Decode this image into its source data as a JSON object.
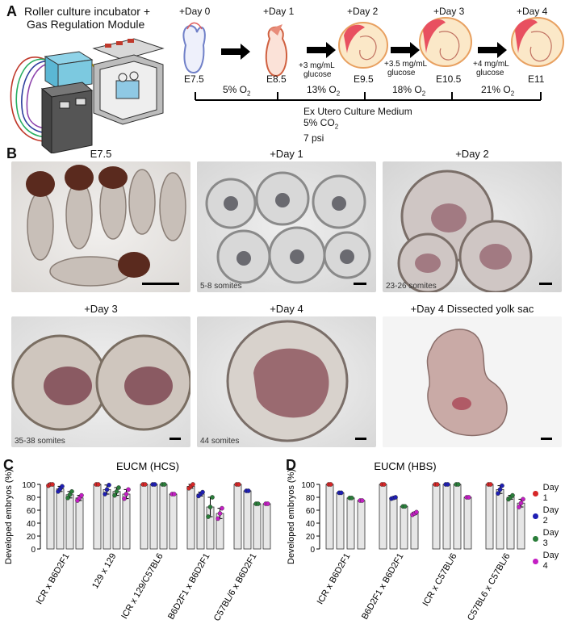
{
  "panelA": {
    "letter": "A",
    "incubator_label_1": "Roller culture incubator +",
    "incubator_label_2": "Gas Regulation Module",
    "days": [
      "+Day 0",
      "+Day 1",
      "+Day 2",
      "+Day 3",
      "+Day 4"
    ],
    "stages": [
      "E7.5",
      "E8.5",
      "E9.5",
      "E10.5",
      "E11"
    ],
    "glucose": [
      {
        "amount": "+3 mg/mL",
        "word": "glucose"
      },
      {
        "amount": "+3.5 mg/mL",
        "word": "glucose"
      },
      {
        "amount": "+4 mg/mL",
        "word": "glucose"
      }
    ],
    "oxygen": [
      {
        "value": "5% O",
        "sub": "2"
      },
      {
        "value": "13% O",
        "sub": "2"
      },
      {
        "value": "18% O",
        "sub": "2"
      },
      {
        "value": "21% O",
        "sub": "2"
      }
    ],
    "medium_line1": "Ex Utero Culture Medium",
    "medium_co2": "5% CO",
    "medium_co2_sub": "2",
    "medium_psi": "7 psi"
  },
  "panelB": {
    "letter": "B",
    "photos": [
      {
        "title": "E7.5",
        "somites": ""
      },
      {
        "title": "+Day 1",
        "somites": "5-8 somites"
      },
      {
        "title": "+Day 2",
        "somites": "23-26 somites"
      },
      {
        "title": "+Day 3",
        "somites": "35-38 somites"
      },
      {
        "title": "+Day 4",
        "somites": "44 somites"
      },
      {
        "title": "+Day 4  Dissected yolk sac",
        "somites": ""
      }
    ]
  },
  "panelC": {
    "letter": "C"
  },
  "panelD": {
    "letter": "D"
  },
  "legend": [
    {
      "label": "Day 1",
      "color": "#d62728"
    },
    {
      "label": "Day 2",
      "color": "#1f1fb4"
    },
    {
      "label": "Day 3",
      "color": "#2a7d3a"
    },
    {
      "label": "Day 4",
      "color": "#c41fc4"
    }
  ],
  "chart_data": [
    {
      "type": "bar",
      "title": "EUCM (HCS)",
      "ylabel": "Developed embryos (%)",
      "ylim": [
        0,
        100
      ],
      "yticks": [
        0,
        20,
        40,
        60,
        80,
        100
      ],
      "categories": [
        "ICR x B6D2F1",
        "129 x 129",
        "ICR x 129/C57BL6",
        "B6D2F1 x B6D2F1",
        "C57BL/6 x B6D2F1"
      ],
      "series": [
        {
          "name": "Day 1",
          "values": [
            100,
            100,
            100,
            97,
            100
          ]
        },
        {
          "name": "Day 2",
          "values": [
            93,
            92,
            100,
            85,
            90
          ]
        },
        {
          "name": "Day 3",
          "values": [
            84,
            89,
            100,
            65,
            70
          ]
        },
        {
          "name": "Day 4",
          "values": [
            79,
            85,
            85,
            55,
            70
          ]
        }
      ],
      "error": [
        [
          2,
          0,
          0,
          3,
          0
        ],
        [
          4,
          7,
          0,
          3,
          0
        ],
        [
          5,
          6,
          0,
          15,
          0
        ],
        [
          4,
          7,
          0,
          8,
          0
        ]
      ]
    },
    {
      "type": "bar",
      "title": "EUCM (HBS)",
      "ylabel": "Developed embryos (%)",
      "ylim": [
        0,
        100
      ],
      "yticks": [
        0,
        20,
        40,
        60,
        80,
        100
      ],
      "categories": [
        "ICR x B6D2F1",
        "B6D2F1 x B6D2F1",
        "ICR x C57BL/6",
        "C57BL6 x C57BL/6"
      ],
      "series": [
        {
          "name": "Day 1",
          "values": [
            100,
            100,
            100,
            100
          ]
        },
        {
          "name": "Day 2",
          "values": [
            87,
            79,
            100,
            92
          ]
        },
        {
          "name": "Day 3",
          "values": [
            79,
            66,
            100,
            80
          ]
        },
        {
          "name": "Day 4",
          "values": [
            75,
            55,
            80,
            71
          ]
        }
      ],
      "error": [
        [
          0,
          0,
          0,
          0
        ],
        [
          0,
          1,
          0,
          6
        ],
        [
          0,
          0,
          0,
          3
        ],
        [
          0,
          2,
          0,
          6
        ]
      ]
    }
  ]
}
